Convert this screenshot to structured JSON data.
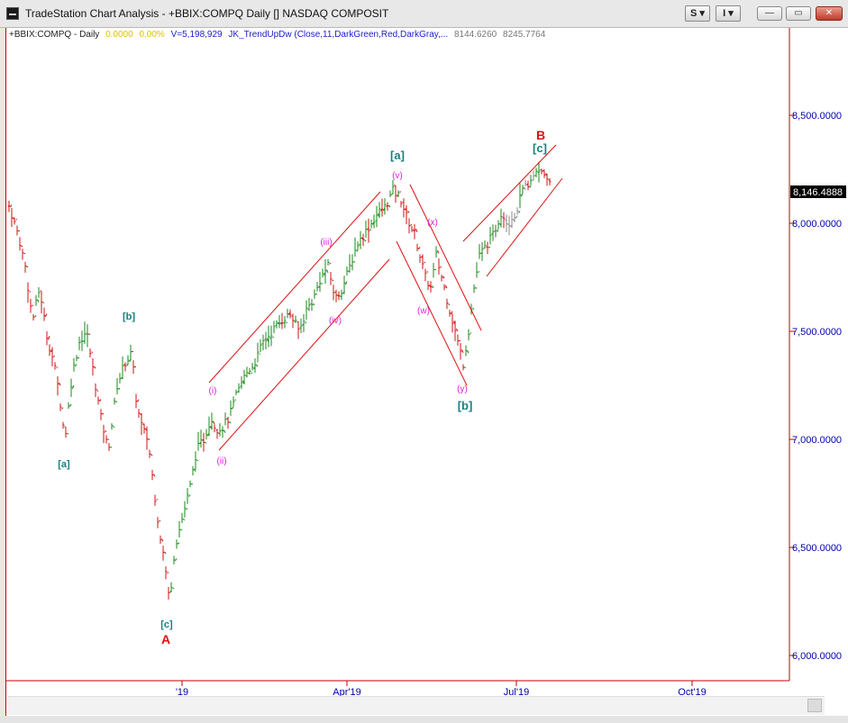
{
  "window": {
    "title": "TradeStation Chart Analysis - +BBIX:COMPQ Daily [] NASDAQ COMPOSIT",
    "toolbar_s_label": "S ▾",
    "toolbar_i_label": "I ▾",
    "min_label": "—",
    "max_label": "▭",
    "close_label": "✕"
  },
  "infobar": {
    "symbol": "+BBIX:COMPQ - Daily",
    "change": "0.0000",
    "change_pct": "0.00%",
    "volume": "V=5,198,929",
    "indicator": "JK_TrendUpDw (Close,11,DarkGreen,Red,DarkGray,...",
    "val1": "8144.6260",
    "val2": "8245.7764"
  },
  "colors": {
    "up_bar": "#1a8a1a",
    "down_bar": "#d01010",
    "neutral_bar": "#888888",
    "channel": "#e01010",
    "axis": "#c00000",
    "price_label": "#0000aa",
    "teal_label": "#168080",
    "magenta_label": "#e020e0",
    "red_label": "#e01010"
  },
  "chart_data": {
    "type": "ohlc",
    "y_ticks": [
      "8,500.0000",
      "8,000.0000",
      "7,500.0000",
      "7,000.0000",
      "6,500.0000",
      "6,000.0000"
    ],
    "x_ticks": [
      "'19",
      "Apr'19",
      "Jul'19",
      "Oct'19"
    ],
    "last_price_label": "8,146.4888",
    "ylim": [
      5900,
      8620
    ],
    "wave_labels": {
      "teal": [
        "[a]",
        "[b]",
        "[c]",
        "[a]",
        "[b]",
        "[c]"
      ],
      "magenta": [
        "(i)",
        "(ii)",
        "(iii)",
        "(iv)",
        "(v)",
        "(w)",
        "(x)",
        "(y)"
      ],
      "red": [
        "A",
        "B"
      ]
    }
  }
}
